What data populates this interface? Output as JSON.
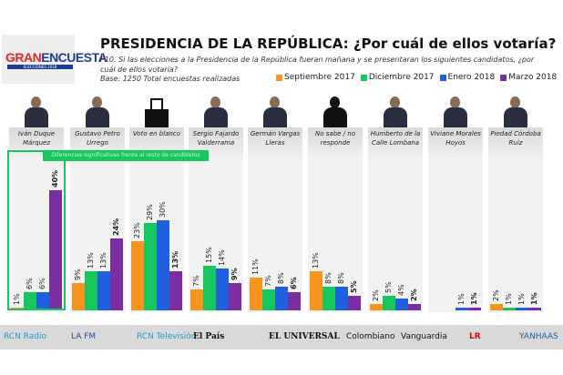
{
  "header": {
    "logo_text": "GRANENCUESTA",
    "logo_sub": "ELECCIONES 2018",
    "title": "PRESIDENCIA DE LA REPÚBLICA: ¿Por cuál de ellos votaría?",
    "question": "P10. Si las elecciones a la Presidencia de la República fueran mañana y se presentaran los siguientes candidatos, ¿por cuál de ellos votaría?",
    "base": "Base: 1250 Total encuestas realizadas"
  },
  "highlight_label": "Diferencias significativas frente al resto de candidatos",
  "chart_data": {
    "type": "bar",
    "categories": [
      "Iván Duque Márquez",
      "Gustavo Petro Urrego",
      "Voto en blanco",
      "Sergio Fajardo Valderrama",
      "Germán Vargas Lleras",
      "No sabe / no responde",
      "Humberto de la Calle Lombana",
      "Viviane Morales Hoyos",
      "Piedad Córdoba Ruiz"
    ],
    "series": [
      {
        "name": "Septiembre 2017",
        "color": "#f7941d",
        "values": [
          1,
          9,
          23,
          7,
          11,
          13,
          2,
          null,
          2
        ]
      },
      {
        "name": "Diciembre 2017",
        "color": "#16c75d",
        "values": [
          6,
          13,
          29,
          15,
          7,
          8,
          5,
          null,
          1
        ]
      },
      {
        "name": "Enero 2018",
        "color": "#1f5fe0",
        "values": [
          6,
          13,
          30,
          14,
          8,
          8,
          4,
          1,
          1
        ]
      },
      {
        "name": "Marzo 2018",
        "color": "#7b2ea0",
        "values": [
          40,
          24,
          13,
          9,
          6,
          5,
          2,
          1,
          1
        ]
      }
    ],
    "value_suffix": "%",
    "ylim": [
      0,
      40
    ]
  },
  "footer": {
    "logos": [
      "RCN Radio",
      "LA FM",
      "RCN Televisión",
      "El País",
      "EL UNIVERSAL",
      "Colombiano",
      "Vanguardia",
      "LR",
      "YANHAAS"
    ]
  }
}
